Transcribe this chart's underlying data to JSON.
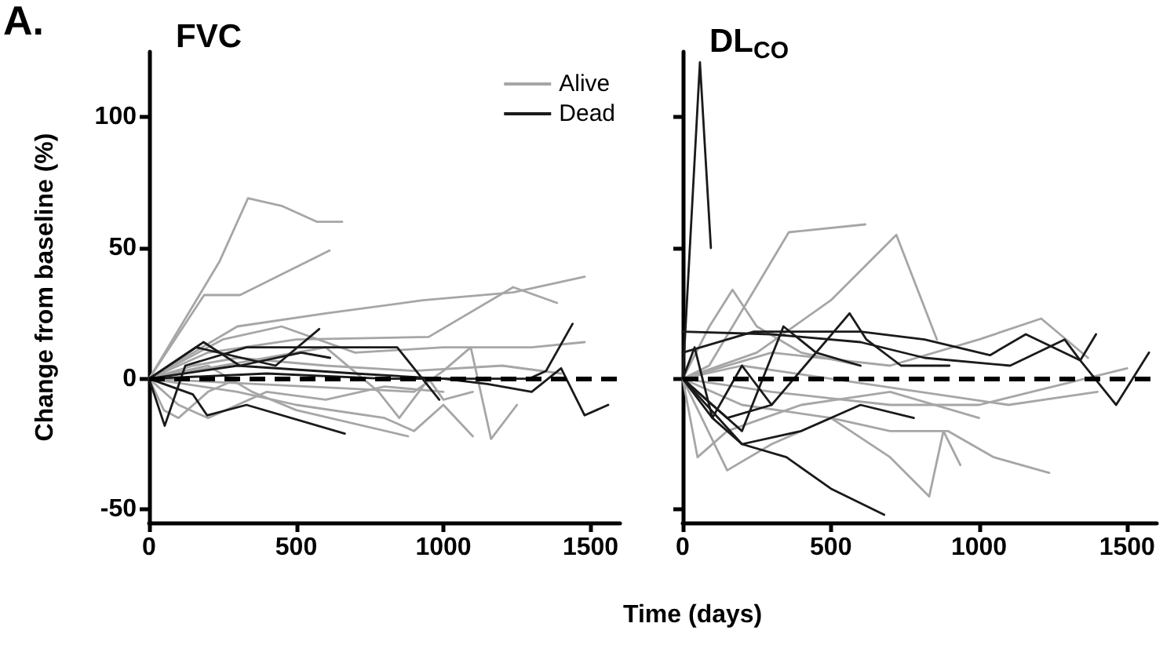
{
  "chart_data": [
    {
      "type": "line",
      "title": "FVC",
      "xlabel": "Time (days)",
      "ylabel": "Change from baseline (%)",
      "annotations": [
        "A."
      ],
      "xlim": [
        0,
        1600
      ],
      "xticks": [
        0,
        500,
        1000,
        1500
      ],
      "ylim": [
        -55,
        125
      ],
      "yticks": [
        -50,
        0,
        50,
        100
      ],
      "grid": false,
      "legend": "top right",
      "marker": "none",
      "line_style": "solid",
      "ref_lines": [
        {
          "axis": "y",
          "value": 0,
          "color": "#000000",
          "line_style": "dashed"
        }
      ],
      "series": [
        {
          "name": "Alive",
          "color": "#a6a6a6",
          "x": [
            0,
            171,
            240,
            336,
            453,
            571,
            656
          ],
          "values": [
            0,
            32,
            45,
            69,
            66,
            60,
            60
          ]
        },
        {
          "color": "#a6a6a6",
          "x": [
            0,
            187,
            309,
            613
          ],
          "values": [
            0,
            32,
            32,
            49
          ]
        },
        {
          "color": "#a6a6a6",
          "x": [
            0,
            300,
            600,
            930,
            1237,
            1480
          ],
          "values": [
            0,
            20,
            25,
            30,
            33,
            39
          ]
        },
        {
          "color": "#a6a6a6",
          "x": [
            0,
            200,
            500,
            950,
            1237,
            1386
          ],
          "values": [
            0,
            10,
            15,
            16,
            35,
            29
          ]
        },
        {
          "color": "#a6a6a6",
          "x": [
            0,
            250,
            450,
            700,
            1000,
            1300,
            1480
          ],
          "values": [
            0,
            15,
            20,
            10,
            12,
            12,
            14
          ]
        },
        {
          "color": "#a6a6a6",
          "x": [
            0,
            150,
            300,
            600,
            900,
            1200,
            1400
          ],
          "values": [
            0,
            5,
            8,
            5,
            3,
            5,
            2
          ]
        },
        {
          "color": "#a6a6a6",
          "x": [
            0,
            100,
            200,
            400,
            600,
            800,
            1000
          ],
          "values": [
            0,
            -10,
            -15,
            -5,
            -8,
            -3,
            -5
          ]
        },
        {
          "color": "#a6a6a6",
          "x": [
            0,
            300,
            500,
            800,
            900,
            1000,
            1100
          ],
          "values": [
            0,
            -5,
            -10,
            -15,
            -20,
            -10,
            -22
          ]
        },
        {
          "color": "#a6a6a6",
          "x": [
            0,
            200,
            350,
            500,
            880
          ],
          "values": [
            0,
            5,
            -5,
            -12,
            -22
          ]
        },
        {
          "color": "#a6a6a6",
          "x": [
            0,
            400,
            600,
            780,
            850,
            950,
            1000,
            1100
          ],
          "values": [
            0,
            8,
            12,
            -5,
            -15,
            0,
            -8,
            -5
          ]
        },
        {
          "color": "#a6a6a6",
          "x": [
            0,
            900,
            1000,
            1093,
            1162,
            1250
          ],
          "values": [
            0,
            -5,
            3,
            12,
            -23,
            -10
          ]
        },
        {
          "color": "#a6a6a6",
          "x": [
            0,
            50,
            100,
            200,
            300
          ],
          "values": [
            0,
            -12,
            -15,
            -5,
            0
          ]
        },
        {
          "name": "Dead",
          "color": "#1a1a1a",
          "x": [
            0,
            185,
            308,
            517,
            615
          ],
          "values": [
            0,
            14,
            5,
            10,
            8
          ]
        },
        {
          "color": "#1a1a1a",
          "x": [
            0,
            160,
            430,
            578
          ],
          "values": [
            0,
            12,
            5,
            19
          ]
        },
        {
          "color": "#1a1a1a",
          "x": [
            0,
            53,
            123,
            331,
            843,
            986
          ],
          "values": [
            0,
            -18,
            5,
            12,
            12,
            -8
          ]
        },
        {
          "color": "#1a1a1a",
          "x": [
            0,
            149,
            197,
            331,
            665
          ],
          "values": [
            0,
            -6,
            -14,
            -10,
            -21
          ]
        },
        {
          "color": "#1a1a1a",
          "x": [
            0,
            400,
            800,
            1290,
            1349,
            1439
          ],
          "values": [
            0,
            2,
            0,
            0,
            3,
            21
          ]
        },
        {
          "color": "#1a1a1a",
          "x": [
            0,
            300,
            700,
            1000,
            1150,
            1300,
            1400,
            1480,
            1560
          ],
          "values": [
            0,
            5,
            2,
            0,
            -2,
            -5,
            4,
            -14,
            -10
          ]
        }
      ]
    },
    {
      "type": "line",
      "title": "DL$_{CO}$",
      "xlim": [
        0,
        1600
      ],
      "xticks": [
        0,
        500,
        1000,
        1500
      ],
      "ylim": [
        -55,
        125
      ],
      "yticks": [
        -50,
        0,
        50,
        100
      ],
      "tick_labels": "x",
      "grid": false,
      "marker": "none",
      "line_style": "solid",
      "ref_lines": [
        {
          "axis": "y",
          "value": 0,
          "color": "#000000",
          "line_style": "dashed"
        }
      ],
      "series": [
        {
          "color": "#a6a6a6",
          "x": [
            0,
            89,
            358,
            616
          ],
          "values": [
            0,
            5,
            56,
            59
          ]
        },
        {
          "color": "#a6a6a6",
          "x": [
            0,
            250,
            500,
            721,
            858
          ],
          "values": [
            0,
            10,
            30,
            55,
            15
          ]
        },
        {
          "color": "#a6a6a6",
          "x": [
            0,
            90,
            168,
            250,
            400,
            600
          ],
          "values": [
            0,
            20,
            34,
            20,
            10,
            5
          ]
        },
        {
          "color": "#a6a6a6",
          "x": [
            0,
            300,
            700,
            1000,
            1210,
            1368
          ],
          "values": [
            0,
            10,
            5,
            15,
            23,
            8
          ]
        },
        {
          "color": "#a6a6a6",
          "x": [
            0,
            150,
            300,
            500,
            700,
            895,
            1050,
            1237
          ],
          "values": [
            0,
            -35,
            -25,
            -15,
            -20,
            -20,
            -30,
            -36
          ]
        },
        {
          "color": "#a6a6a6",
          "x": [
            0,
            200,
            500,
            700,
            832,
            880,
            937
          ],
          "values": [
            0,
            -10,
            -15,
            -30,
            -45,
            -20,
            -33
          ]
        },
        {
          "color": "#a6a6a6",
          "x": [
            0,
            300,
            700,
            1000,
            1500
          ],
          "values": [
            0,
            -5,
            -10,
            -10,
            4
          ]
        },
        {
          "color": "#a6a6a6",
          "x": [
            0,
            200,
            500,
            800,
            1100,
            1400
          ],
          "values": [
            0,
            5,
            0,
            -5,
            -10,
            -5
          ]
        },
        {
          "color": "#a6a6a6",
          "x": [
            0,
            50,
            150,
            400,
            700,
            1000
          ],
          "values": [
            0,
            -30,
            -20,
            -10,
            -5,
            -15
          ]
        },
        {
          "color": "#1a1a1a",
          "x": [
            0,
            58,
            95
          ],
          "values": [
            0,
            121,
            50
          ]
        },
        {
          "color": "#1a1a1a",
          "x": [
            0,
            300,
            600,
            816,
            1105,
            1289,
            1342,
            1463,
            1574
          ],
          "values": [
            18,
            17,
            14,
            8,
            5,
            15,
            7,
            -10,
            10
          ]
        },
        {
          "color": "#1a1a1a",
          "x": [
            0,
            240,
            600,
            816,
            1037,
            1158,
            1342,
            1395
          ],
          "values": [
            10,
            18,
            18,
            15,
            9,
            17,
            7,
            17
          ]
        },
        {
          "color": "#1a1a1a",
          "x": [
            0,
            150,
            300,
            563,
            620,
            737,
            900
          ],
          "values": [
            0,
            -15,
            -10,
            25,
            15,
            5,
            5
          ]
        },
        {
          "color": "#1a1a1a",
          "x": [
            0,
            200,
            350,
            500,
            680
          ],
          "values": [
            0,
            -25,
            -30,
            -42,
            -52
          ]
        },
        {
          "color": "#1a1a1a",
          "x": [
            0,
            100,
            200,
            400,
            600,
            780
          ],
          "values": [
            0,
            -15,
            -25,
            -20,
            -10,
            -15
          ]
        },
        {
          "color": "#1a1a1a",
          "x": [
            0,
            40,
            100,
            200,
            300
          ],
          "values": [
            0,
            12,
            -15,
            5,
            -10
          ]
        },
        {
          "color": "#1a1a1a",
          "x": [
            0,
            100,
            200,
            340,
            450,
            600
          ],
          "values": [
            0,
            -10,
            -20,
            20,
            10,
            5
          ]
        }
      ]
    }
  ]
}
